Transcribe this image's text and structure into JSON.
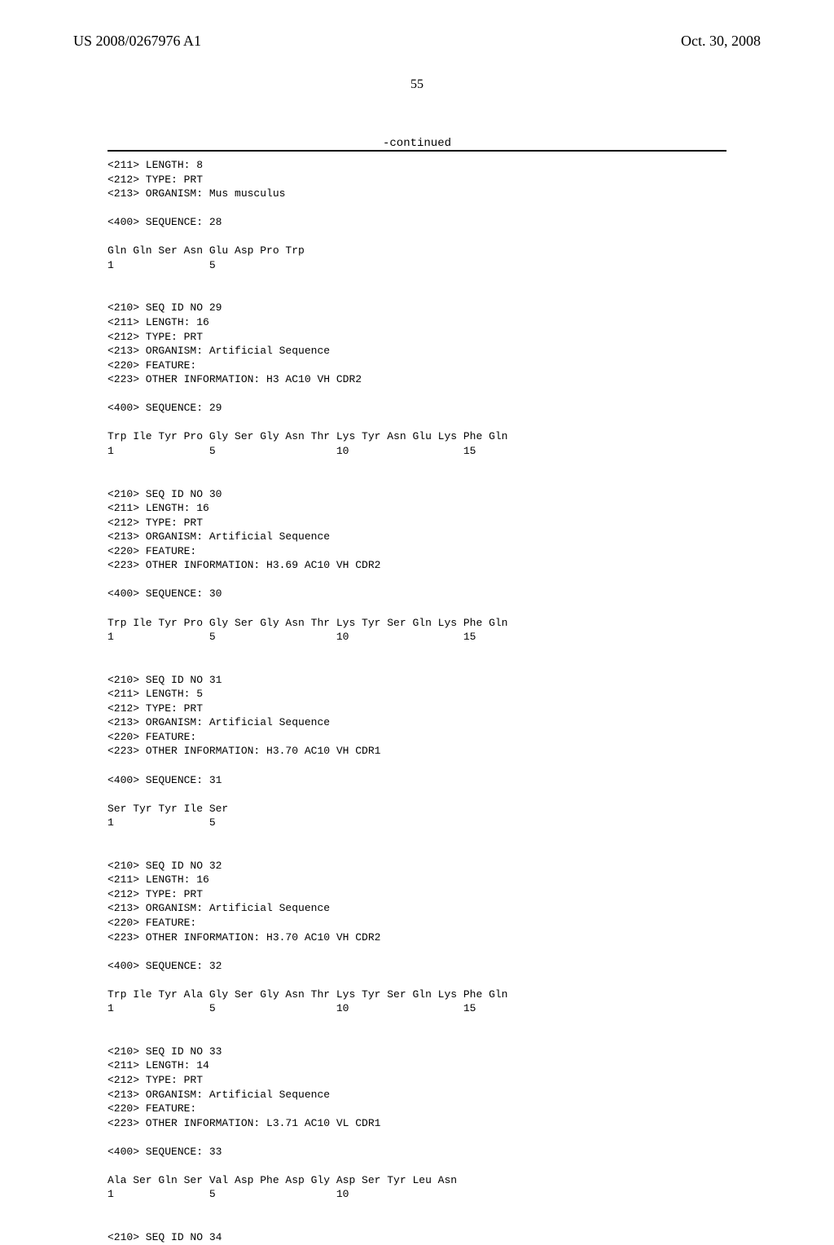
{
  "header": {
    "pub_id": "US 2008/0267976 A1",
    "pub_date": "Oct. 30, 2008",
    "page_number": "55",
    "continued_label": "-continued"
  },
  "sequence_text": "<211> LENGTH: 8\n<212> TYPE: PRT\n<213> ORGANISM: Mus musculus\n\n<400> SEQUENCE: 28\n\nGln Gln Ser Asn Glu Asp Pro Trp\n1               5\n\n\n<210> SEQ ID NO 29\n<211> LENGTH: 16\n<212> TYPE: PRT\n<213> ORGANISM: Artificial Sequence\n<220> FEATURE:\n<223> OTHER INFORMATION: H3 AC10 VH CDR2\n\n<400> SEQUENCE: 29\n\nTrp Ile Tyr Pro Gly Ser Gly Asn Thr Lys Tyr Asn Glu Lys Phe Gln\n1               5                   10                  15\n\n\n<210> SEQ ID NO 30\n<211> LENGTH: 16\n<212> TYPE: PRT\n<213> ORGANISM: Artificial Sequence\n<220> FEATURE:\n<223> OTHER INFORMATION: H3.69 AC10 VH CDR2\n\n<400> SEQUENCE: 30\n\nTrp Ile Tyr Pro Gly Ser Gly Asn Thr Lys Tyr Ser Gln Lys Phe Gln\n1               5                   10                  15\n\n\n<210> SEQ ID NO 31\n<211> LENGTH: 5\n<212> TYPE: PRT\n<213> ORGANISM: Artificial Sequence\n<220> FEATURE:\n<223> OTHER INFORMATION: H3.70 AC10 VH CDR1\n\n<400> SEQUENCE: 31\n\nSer Tyr Tyr Ile Ser\n1               5\n\n\n<210> SEQ ID NO 32\n<211> LENGTH: 16\n<212> TYPE: PRT\n<213> ORGANISM: Artificial Sequence\n<220> FEATURE:\n<223> OTHER INFORMATION: H3.70 AC10 VH CDR2\n\n<400> SEQUENCE: 32\n\nTrp Ile Tyr Ala Gly Ser Gly Asn Thr Lys Tyr Ser Gln Lys Phe Gln\n1               5                   10                  15\n\n\n<210> SEQ ID NO 33\n<211> LENGTH: 14\n<212> TYPE: PRT\n<213> ORGANISM: Artificial Sequence\n<220> FEATURE:\n<223> OTHER INFORMATION: L3.71 AC10 VL CDR1\n\n<400> SEQUENCE: 33\n\nAla Ser Gln Ser Val Asp Phe Asp Gly Asp Ser Tyr Leu Asn\n1               5                   10\n\n\n<210> SEQ ID NO 34"
}
